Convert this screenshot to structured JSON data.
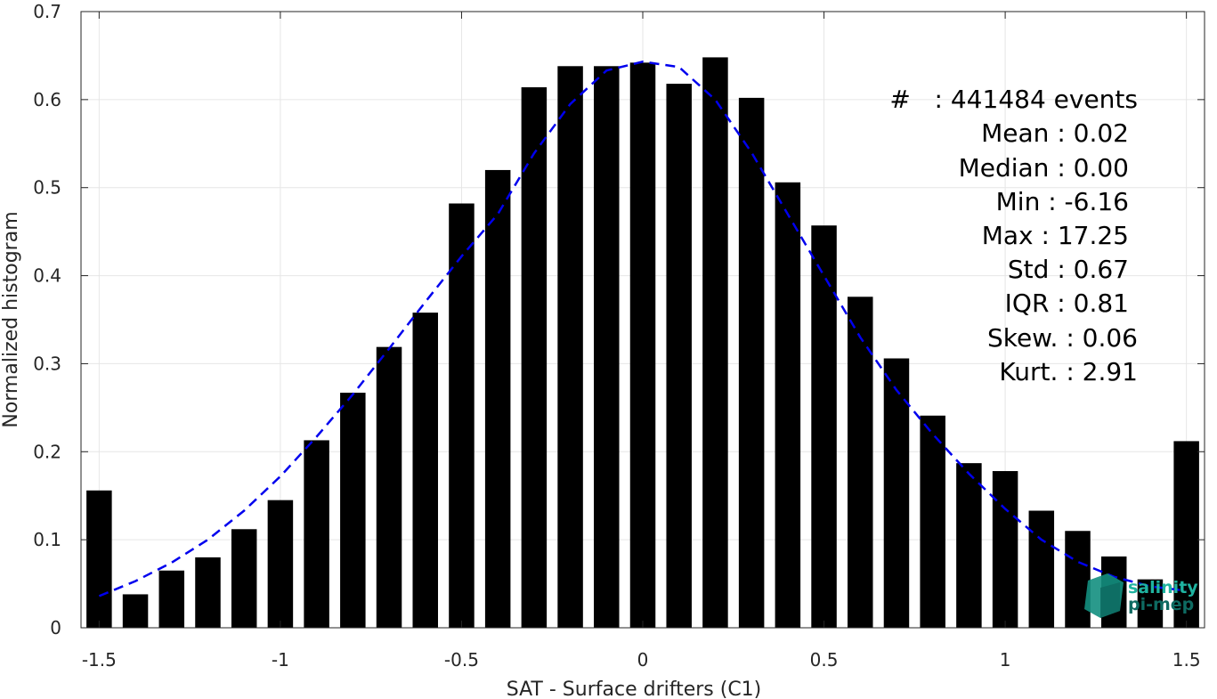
{
  "chart_data": {
    "type": "bar",
    "xlabel": "SAT - Surface drifters (C1)",
    "ylabel": "Normalized histogram",
    "xlim": [
      -1.55,
      1.55
    ],
    "ylim": [
      0,
      0.7
    ],
    "xticks": [
      -1.5,
      -1,
      -0.5,
      0,
      0.5,
      1,
      1.5
    ],
    "xtick_labels": [
      "-1.5",
      "-1",
      "-0.5",
      "0",
      "0.5",
      "1",
      "1.5"
    ],
    "yticks": [
      0,
      0.1,
      0.2,
      0.3,
      0.4,
      0.5,
      0.6,
      0.7
    ],
    "ytick_labels": [
      "0",
      "0.1",
      "0.2",
      "0.3",
      "0.4",
      "0.5",
      "0.6",
      "0.7"
    ],
    "grid": true,
    "bar_color": "#000000",
    "bar_width": 0.07,
    "x": [
      -1.5,
      -1.4,
      -1.3,
      -1.2,
      -1.1,
      -1.0,
      -0.9,
      -0.8,
      -0.7,
      -0.6,
      -0.5,
      -0.4,
      -0.3,
      -0.2,
      -0.1,
      0.0,
      0.1,
      0.2,
      0.3,
      0.4,
      0.5,
      0.6,
      0.7,
      0.8,
      0.9,
      1.0,
      1.1,
      1.2,
      1.3,
      1.4,
      1.5
    ],
    "values": [
      0.156,
      0.038,
      0.065,
      0.08,
      0.112,
      0.145,
      0.213,
      0.267,
      0.319,
      0.358,
      0.482,
      0.52,
      0.614,
      0.638,
      0.638,
      0.642,
      0.618,
      0.648,
      0.602,
      0.506,
      0.457,
      0.376,
      0.306,
      0.241,
      0.187,
      0.178,
      0.133,
      0.11,
      0.081,
      0.055,
      0.212
    ],
    "fit_line": {
      "style": "dashed",
      "color": "#0000ee",
      "x": [
        -1.5,
        -1.4,
        -1.3,
        -1.2,
        -1.1,
        -1.0,
        -0.9,
        -0.8,
        -0.7,
        -0.6,
        -0.5,
        -0.4,
        -0.3,
        -0.2,
        -0.1,
        0.0,
        0.1,
        0.2,
        0.3,
        0.4,
        0.5,
        0.6,
        0.7,
        0.8,
        0.9,
        1.0,
        1.1,
        1.2,
        1.3,
        1.4,
        1.5
      ],
      "y": [
        0.036,
        0.053,
        0.074,
        0.1,
        0.133,
        0.172,
        0.217,
        0.265,
        0.317,
        0.37,
        0.422,
        0.47,
        0.539,
        0.595,
        0.633,
        0.643,
        0.637,
        0.6,
        0.54,
        0.47,
        0.4,
        0.33,
        0.27,
        0.22,
        0.175,
        0.135,
        0.1,
        0.075,
        0.058,
        0.047,
        0.042
      ]
    }
  },
  "stats": [
    {
      "id": "events",
      "text": "#   : 441484 events"
    },
    {
      "id": "mean",
      "text": "Mean : 0.02"
    },
    {
      "id": "median",
      "text": "Median : 0.00"
    },
    {
      "id": "min",
      "text": "Min : -6.16"
    },
    {
      "id": "max",
      "text": "Max : 17.25"
    },
    {
      "id": "std",
      "text": "Std : 0.67"
    },
    {
      "id": "iqr",
      "text": "IQR : 0.81"
    },
    {
      "id": "skew",
      "text": "Skew. : 0.06"
    },
    {
      "id": "kurt",
      "text": "Kurt. : 2.91"
    }
  ],
  "logo": {
    "line1": "salinity",
    "line2": "pi-mep",
    "color1": "#1fb3a0",
    "color2": "#0e6b62"
  }
}
